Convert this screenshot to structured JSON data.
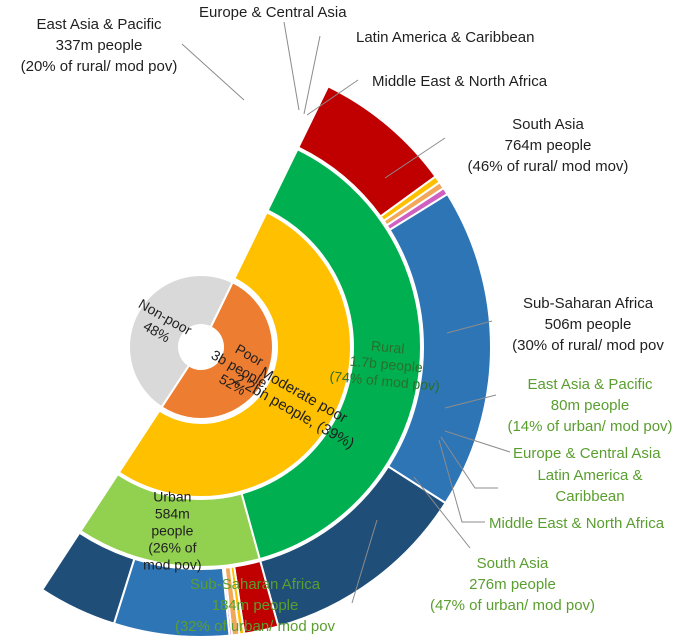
{
  "colors": {
    "nonpoor": "#d9d9d9",
    "poor": "#ed7d31",
    "moderate": "#ffc000",
    "rural": "#00b050",
    "urban": "#92d050",
    "eap": "#c00000",
    "eca": "#ffc000",
    "lac": "#f2a85a",
    "mena": "#d060c0",
    "southasia": "#2e75b6",
    "ssa": "#1f4e79",
    "label_black": "#1f1f1f",
    "label_green": "#5a9e2f"
  },
  "chart_data": {
    "type": "sunburst",
    "rings": [
      {
        "level": "poverty status",
        "segments": [
          {
            "name": "Poor",
            "value": 52,
            "lines": [
              "Poor",
              "3b people,",
              "52%"
            ]
          },
          {
            "name": "Non-poor",
            "value": 48,
            "lines": [
              "Non-poor",
              "48%"
            ]
          }
        ]
      },
      {
        "level": "moderate poor",
        "segments": [
          {
            "name": "Moderate poor",
            "value": 39,
            "lines": [
              "Moderate poor",
              "2.2bn people, (39%)"
            ]
          }
        ]
      },
      {
        "level": "area",
        "segments": [
          {
            "name": "Rural",
            "value": 74,
            "lines": [
              "Rural",
              "1.7b people",
              "(74% of mod pov)"
            ]
          },
          {
            "name": "Urban",
            "value": 26,
            "lines": [
              "Urban",
              "584m",
              "people",
              "(26% of",
              "mod pov)"
            ]
          }
        ]
      },
      {
        "level": "region",
        "segments": [
          {
            "parent": "Rural",
            "name": "East Asia & Pacific",
            "value": 20
          },
          {
            "parent": "Rural",
            "name": "Europe & Central Asia",
            "value": 1
          },
          {
            "parent": "Rural",
            "name": "Latin America & Caribbean",
            "value": 1
          },
          {
            "parent": "Rural",
            "name": "Middle East & North Africa",
            "value": 1
          },
          {
            "parent": "Rural",
            "name": "South Asia",
            "value": 46
          },
          {
            "parent": "Rural",
            "name": "Sub-Saharan Africa",
            "value": 30
          },
          {
            "parent": "Urban",
            "name": "East Asia & Pacific",
            "value": 14
          },
          {
            "parent": "Urban",
            "name": "Europe & Central Asia",
            "value": 2
          },
          {
            "parent": "Urban",
            "name": "Latin America & Caribbean",
            "value": 3
          },
          {
            "parent": "Urban",
            "name": "Middle East & North Africa",
            "value": 1
          },
          {
            "parent": "Urban",
            "name": "South Asia",
            "value": 47
          },
          {
            "parent": "Urban",
            "name": "Sub-Saharan Africa",
            "value": 32
          }
        ]
      }
    ],
    "annotations": {
      "r_eap": [
        "East Asia & Pacific",
        "337m people",
        "(20% of rural/ mod pov)"
      ],
      "r_eca": [
        "Europe & Central Asia"
      ],
      "r_lac": [
        "Latin America & Caribbean"
      ],
      "r_mena": [
        "Middle East & North Africa"
      ],
      "r_sa": [
        "South Asia",
        "764m people",
        "(46% of rural/ mod mov)"
      ],
      "r_ssa": [
        "Sub-Saharan Africa",
        "506m people",
        "(30% of rural/ mod pov"
      ],
      "u_eap": [
        "East Asia & Pacific",
        "80m people",
        "(14% of urban/ mod pov)"
      ],
      "u_eca": [
        "Europe & Central Asia"
      ],
      "u_lac": [
        "Latin America &",
        "Caribbean"
      ],
      "u_mena": [
        "Middle East & North Africa"
      ],
      "u_sa": [
        "South Asia",
        "276m people",
        "(47% of urban/ mod pov)"
      ],
      "u_ssa": [
        "Sub-Saharan Africa",
        "184m people",
        "(32% of urban/ mod pov"
      ]
    }
  }
}
